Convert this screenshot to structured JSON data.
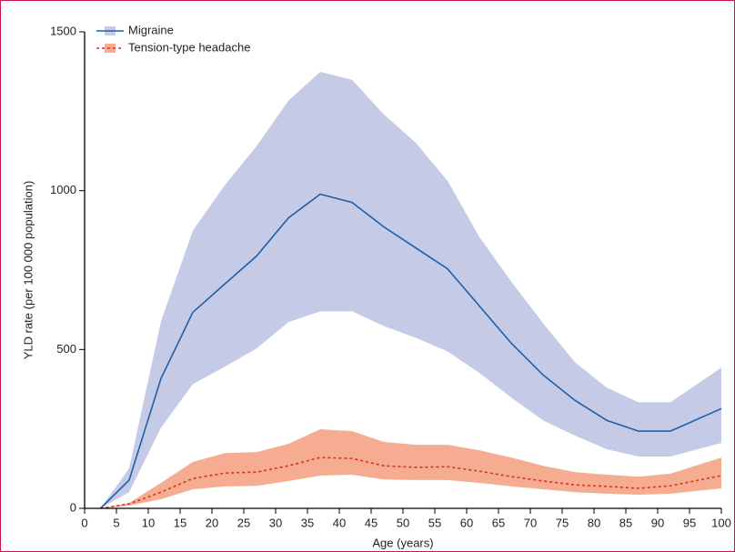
{
  "chart_data": {
    "type": "line",
    "xlabel": "Age (years)",
    "ylabel": "YLD rate (per 100 000 population)",
    "x": [
      2.5,
      7,
      12,
      17,
      22,
      27,
      32,
      37,
      42,
      47,
      52,
      57,
      62,
      67,
      72,
      77,
      82,
      87,
      92,
      100
    ],
    "series": [
      {
        "name": "Migraine",
        "color": "#1f5fa8",
        "band_color": "#c5cae6",
        "dash": false,
        "values": [
          0,
          89,
          409,
          617,
          706,
          794,
          914,
          989,
          963,
          886,
          820,
          754,
          637,
          520,
          420,
          340,
          277,
          243,
          243,
          314
        ],
        "upper": [
          0,
          126,
          589,
          874,
          1017,
          1140,
          1283,
          1374,
          1349,
          1240,
          1151,
          1031,
          854,
          714,
          583,
          460,
          380,
          334,
          334,
          443
        ],
        "lower": [
          0,
          51,
          254,
          391,
          446,
          503,
          586,
          620,
          620,
          574,
          537,
          494,
          426,
          349,
          277,
          229,
          186,
          163,
          163,
          206
        ]
      },
      {
        "name": "Tension-type headache",
        "color": "#d9321e",
        "band_color": "#f6ac90",
        "dash": true,
        "values": [
          0,
          14,
          51,
          94,
          111,
          114,
          134,
          160,
          157,
          134,
          129,
          131,
          117,
          100,
          86,
          74,
          69,
          63,
          71,
          103
        ],
        "upper": [
          0,
          17,
          80,
          146,
          174,
          177,
          203,
          249,
          243,
          209,
          200,
          200,
          183,
          160,
          134,
          114,
          106,
          100,
          109,
          160
        ],
        "lower": [
          0,
          9,
          29,
          60,
          69,
          71,
          86,
          103,
          106,
          91,
          89,
          89,
          80,
          69,
          60,
          51,
          46,
          43,
          46,
          63
        ]
      }
    ],
    "xlim": [
      0,
      100
    ],
    "xticks": [
      0,
      5,
      10,
      15,
      20,
      25,
      30,
      35,
      40,
      45,
      50,
      55,
      60,
      65,
      70,
      75,
      80,
      85,
      90,
      95,
      100
    ],
    "ylim": [
      0,
      1500
    ],
    "yticks": [
      0,
      500,
      1000,
      1500
    ],
    "legend": "upper-left"
  }
}
